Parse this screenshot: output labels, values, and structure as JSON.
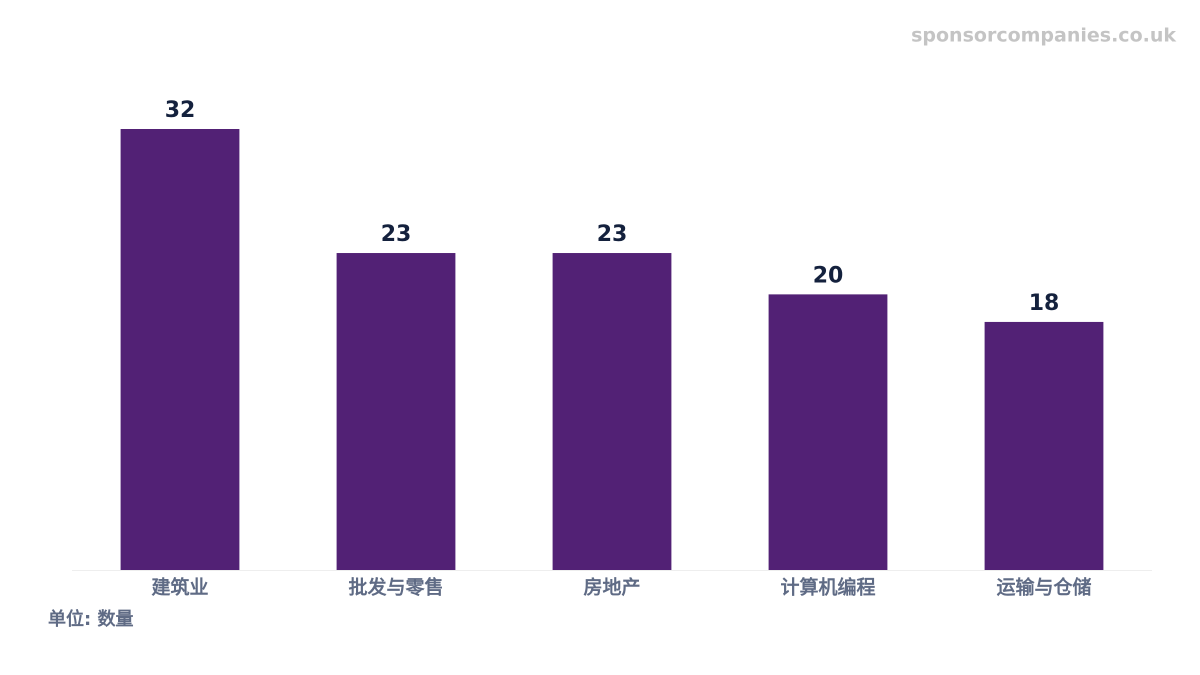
{
  "chart_data": {
    "type": "bar",
    "watermark": "sponsorcompanies.co.uk",
    "y_axis_label": "单位: 数量",
    "categories": [
      "建筑业",
      "批发与零售",
      "房地产",
      "计算机编程",
      "运输与仓储"
    ],
    "values": [
      32,
      23,
      23,
      20,
      18
    ],
    "color": "#522175",
    "ylim": [
      0,
      32
    ]
  }
}
